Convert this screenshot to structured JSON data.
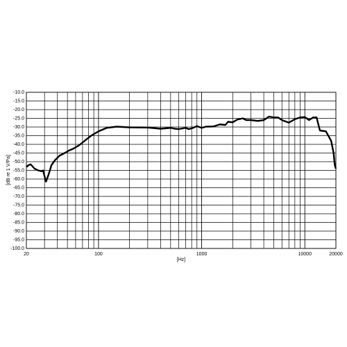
{
  "chart_data": {
    "type": "line",
    "x_label": "[Hz]",
    "y_label": "[dB re 1 V/Pa]",
    "log_x": true,
    "xlim": [
      20,
      20000
    ],
    "xticks": [
      20,
      100,
      1000,
      10000,
      20000
    ],
    "xgrid": [
      30,
      40,
      50,
      60,
      70,
      80,
      90,
      100,
      200,
      300,
      400,
      500,
      600,
      700,
      800,
      900,
      1000,
      2000,
      3000,
      4000,
      5000,
      6000,
      7000,
      8000,
      9000,
      10000
    ],
    "ylim": [
      -100,
      -10
    ],
    "yticks": [
      {
        "value": -10,
        "label": "-10.0"
      },
      {
        "value": -15,
        "label": "-15.0"
      },
      {
        "value": -20,
        "label": "-20.0"
      },
      {
        "value": -25,
        "label": "-25.0"
      },
      {
        "value": -30,
        "label": "-30.0"
      },
      {
        "value": -35,
        "label": "-35.0"
      },
      {
        "value": -40,
        "label": "-40.0"
      },
      {
        "value": -45,
        "label": "-45.0"
      },
      {
        "value": -50,
        "label": "-50.0"
      },
      {
        "value": -55,
        "label": "-55.0"
      },
      {
        "value": -60,
        "label": "-60.0"
      },
      {
        "value": -65,
        "label": "-65.0"
      },
      {
        "value": -70,
        "label": "-70.0"
      },
      {
        "value": -75,
        "label": "-75.0"
      },
      {
        "value": -80,
        "label": "-80.0"
      },
      {
        "value": -85,
        "label": "-85.0"
      },
      {
        "value": -90,
        "label": "-90.0"
      },
      {
        "value": -95,
        "label": "-95.0"
      },
      {
        "value": -100,
        "label": "-100.0"
      }
    ],
    "grid": true,
    "color": "#000000",
    "x": [
      20,
      21,
      22,
      24,
      26,
      28,
      29,
      31,
      33,
      35,
      38,
      42,
      47,
      52,
      57,
      65,
      75,
      85,
      100,
      120,
      150,
      200,
      300,
      400,
      500,
      550,
      600,
      700,
      750,
      800,
      900,
      1000,
      1100,
      1300,
      1500,
      1700,
      1800,
      2000,
      2200,
      2500,
      2700,
      3000,
      3500,
      4000,
      4500,
      5000,
      5500,
      6000,
      7000,
      8000,
      9000,
      10000,
      11000,
      12000,
      13000,
      14000,
      16000,
      18000,
      19000,
      19500,
      20000
    ],
    "values": [
      -53,
      -52,
      -51.5,
      -54,
      -55,
      -55.5,
      -55,
      -61.5,
      -57,
      -52,
      -49,
      -46.5,
      -45,
      -43.5,
      -42.5,
      -40.5,
      -37.5,
      -35,
      -32.5,
      -30.5,
      -29.8,
      -30.2,
      -30.3,
      -31,
      -30.5,
      -31,
      -31.2,
      -30.5,
      -31.2,
      -30.8,
      -29.5,
      -30.5,
      -29.8,
      -29.7,
      -28.5,
      -28.8,
      -27,
      -27.3,
      -25.8,
      -25,
      -26,
      -26,
      -26.5,
      -26,
      -24,
      -24.5,
      -24.5,
      -26,
      -27.5,
      -25.5,
      -24.5,
      -24.3,
      -26,
      -24.5,
      -24.5,
      -32,
      -32.5,
      -38,
      -45,
      -52,
      -54
    ]
  }
}
